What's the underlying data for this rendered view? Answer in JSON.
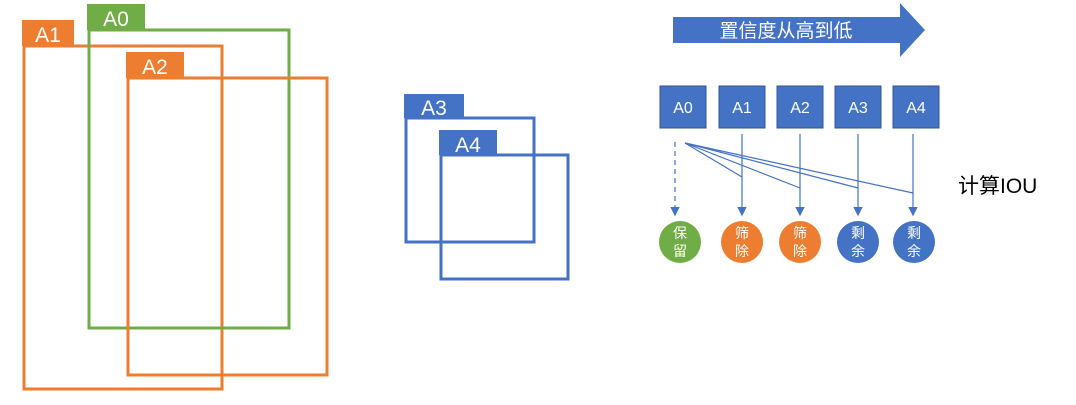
{
  "colors": {
    "orange": "#ED7D31",
    "green": "#70AD47",
    "blue": "#4472C4",
    "white": "#FFFFFF",
    "text_dark": "#000000"
  },
  "boxes_left": [
    {
      "id": "A1",
      "label": "A1",
      "color": "orange"
    },
    {
      "id": "A0",
      "label": "A0",
      "color": "green"
    },
    {
      "id": "A2",
      "label": "A2",
      "color": "orange"
    }
  ],
  "boxes_middle": [
    {
      "id": "A3",
      "label": "A3",
      "color": "blue"
    },
    {
      "id": "A4",
      "label": "A4",
      "color": "blue"
    }
  ],
  "arrow_label": "置信度从高到低",
  "sorted_boxes": [
    "A0",
    "A1",
    "A2",
    "A3",
    "A4"
  ],
  "results": [
    {
      "line1": "保",
      "line2": "留",
      "color": "green"
    },
    {
      "line1": "筛",
      "line2": "除",
      "color": "orange"
    },
    {
      "line1": "筛",
      "line2": "除",
      "color": "orange"
    },
    {
      "line1": "剩",
      "line2": "余",
      "color": "blue"
    },
    {
      "line1": "剩",
      "line2": "余",
      "color": "blue"
    }
  ],
  "iou_label": "计算IOU"
}
